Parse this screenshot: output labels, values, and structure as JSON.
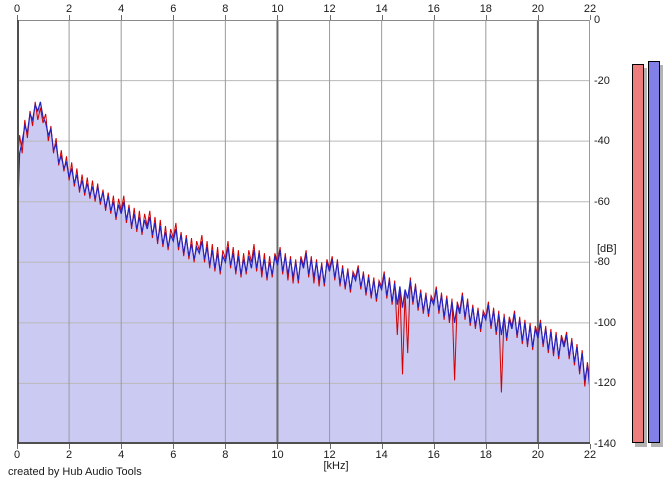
{
  "app": {
    "credit": "created by Hub Audio Tools"
  },
  "axes": {
    "x": {
      "unit_label": "[kHz]",
      "min": 0,
      "max": 22,
      "ticks": [
        0,
        2,
        4,
        6,
        8,
        10,
        12,
        14,
        16,
        18,
        20,
        22
      ]
    },
    "y": {
      "unit_label": "[dB]",
      "min": -140,
      "max": 0,
      "ticks": [
        0,
        -20,
        -40,
        -60,
        -80,
        -100,
        -120,
        -140
      ]
    }
  },
  "colors": {
    "background": "#ffffff",
    "plot_background": "#ffffff",
    "fill_under_blue": "#cacaf2",
    "grid_minor_vertical": "#9a9a9a",
    "grid_major_vertical": "#6b6b6b",
    "grid_horizontal": "#b9b9b9",
    "axis_dark": "#4f4f4f",
    "red_trace": "#d40000",
    "blue_trace": "#2424c0",
    "meter_red": "#ee7e7e",
    "meter_blue": "#8080e8",
    "meter_shadow": "#b3b3b3",
    "text": "#1a1a1a"
  },
  "meters": [
    {
      "name": "red-level-meter",
      "color": "#ee7e7e",
      "value_db": -14.5
    },
    {
      "name": "blue-level-meter",
      "color": "#8080e8",
      "value_db": -13.5
    }
  ],
  "chart_data": {
    "type": "line",
    "title": "",
    "xlabel": "[kHz]",
    "ylabel": "[dB]",
    "xlim": [
      0,
      22
    ],
    "ylim": [
      -140,
      0
    ],
    "grid": true,
    "legend_position": "none",
    "x_start": 0,
    "x_step": 0.1,
    "series": [
      {
        "name": "red-spectrum",
        "color": "#d40000",
        "fill": null,
        "values": [
          -50,
          -38,
          -44,
          -33,
          -39,
          -30,
          -35,
          -27,
          -33,
          -29,
          -34,
          -31,
          -40,
          -35,
          -44,
          -39,
          -48,
          -43,
          -50,
          -45,
          -53,
          -47,
          -55,
          -49,
          -57,
          -51,
          -58,
          -52,
          -59,
          -53,
          -60,
          -54,
          -61,
          -56,
          -63,
          -57,
          -64,
          -58,
          -66,
          -59,
          -63,
          -58,
          -67,
          -61,
          -69,
          -62,
          -70,
          -63,
          -71,
          -64,
          -68,
          -63,
          -72,
          -65,
          -74,
          -66,
          -75,
          -68,
          -76,
          -69,
          -72,
          -67,
          -76,
          -70,
          -78,
          -71,
          -79,
          -72,
          -80,
          -73,
          -76,
          -71,
          -80,
          -73,
          -82,
          -74,
          -83,
          -75,
          -84,
          -76,
          -79,
          -73,
          -82,
          -75,
          -84,
          -76,
          -85,
          -77,
          -84,
          -76,
          -80,
          -74,
          -83,
          -76,
          -85,
          -77,
          -86,
          -78,
          -85,
          -77,
          -80,
          -75,
          -84,
          -77,
          -86,
          -78,
          -87,
          -79,
          -87,
          -78,
          -81,
          -76,
          -85,
          -78,
          -87,
          -79,
          -88,
          -80,
          -88,
          -79,
          -82,
          -78,
          -86,
          -79,
          -88,
          -81,
          -89,
          -82,
          -90,
          -83,
          -85,
          -81,
          -89,
          -83,
          -91,
          -84,
          -92,
          -85,
          -93,
          -86,
          -88,
          -83,
          -92,
          -85,
          -94,
          -86,
          -104,
          -88,
          -117,
          -90,
          -110,
          -85,
          -94,
          -87,
          -96,
          -89,
          -97,
          -90,
          -98,
          -91,
          -93,
          -88,
          -97,
          -90,
          -99,
          -91,
          -100,
          -92,
          -119,
          -93,
          -96,
          -90,
          -99,
          -92,
          -101,
          -94,
          -102,
          -95,
          -103,
          -96,
          -98,
          -93,
          -102,
          -95,
          -104,
          -96,
          -123,
          -97,
          -106,
          -98,
          -101,
          -96,
          -105,
          -98,
          -107,
          -99,
          -108,
          -100,
          -109,
          -101,
          -104,
          -99,
          -108,
          -101,
          -110,
          -102,
          -111,
          -103,
          -112,
          -104,
          -107,
          -103,
          -112,
          -105,
          -114,
          -107,
          -117,
          -109,
          -121,
          -113,
          -119
        ]
      },
      {
        "name": "blue-spectrum",
        "color": "#2424c0",
        "fill": "#cacaf2",
        "values": [
          -69,
          -44,
          -40,
          -35,
          -37,
          -31,
          -33,
          -28,
          -30,
          -27,
          -32,
          -34,
          -38,
          -36,
          -43,
          -41,
          -47,
          -45,
          -49,
          -47,
          -52,
          -49,
          -54,
          -51,
          -56,
          -53,
          -57,
          -54,
          -58,
          -55,
          -59,
          -55,
          -60,
          -57,
          -62,
          -58,
          -63,
          -60,
          -65,
          -61,
          -64,
          -60,
          -66,
          -62,
          -68,
          -64,
          -69,
          -65,
          -70,
          -66,
          -69,
          -65,
          -71,
          -67,
          -73,
          -68,
          -74,
          -70,
          -75,
          -71,
          -73,
          -69,
          -75,
          -71,
          -77,
          -72,
          -78,
          -74,
          -79,
          -75,
          -77,
          -73,
          -79,
          -75,
          -81,
          -76,
          -82,
          -77,
          -83,
          -78,
          -80,
          -75,
          -81,
          -77,
          -83,
          -78,
          -84,
          -79,
          -83,
          -78,
          -82,
          -76,
          -82,
          -77,
          -83,
          -79,
          -85,
          -80,
          -84,
          -78,
          -81,
          -76,
          -83,
          -78,
          -84,
          -79,
          -85,
          -80,
          -86,
          -79,
          -82,
          -77,
          -84,
          -79,
          -85,
          -80,
          -86,
          -81,
          -87,
          -80,
          -83,
          -79,
          -85,
          -80,
          -87,
          -82,
          -88,
          -83,
          -89,
          -84,
          -86,
          -82,
          -88,
          -84,
          -90,
          -85,
          -91,
          -86,
          -92,
          -87,
          -89,
          -84,
          -91,
          -86,
          -93,
          -87,
          -94,
          -88,
          -95,
          -89,
          -92,
          -86,
          -93,
          -88,
          -95,
          -90,
          -96,
          -91,
          -97,
          -92,
          -94,
          -89,
          -96,
          -91,
          -98,
          -92,
          -99,
          -93,
          -100,
          -94,
          -97,
          -91,
          -98,
          -93,
          -100,
          -95,
          -101,
          -96,
          -102,
          -97,
          -99,
          -94,
          -101,
          -96,
          -103,
          -97,
          -104,
          -98,
          -105,
          -99,
          -102,
          -97,
          -104,
          -99,
          -106,
          -100,
          -107,
          -101,
          -108,
          -102,
          -105,
          -100,
          -107,
          -102,
          -109,
          -103,
          -110,
          -104,
          -111,
          -105,
          -108,
          -104,
          -111,
          -106,
          -113,
          -108,
          -116,
          -110,
          -119,
          -114,
          -122
        ]
      }
    ]
  }
}
